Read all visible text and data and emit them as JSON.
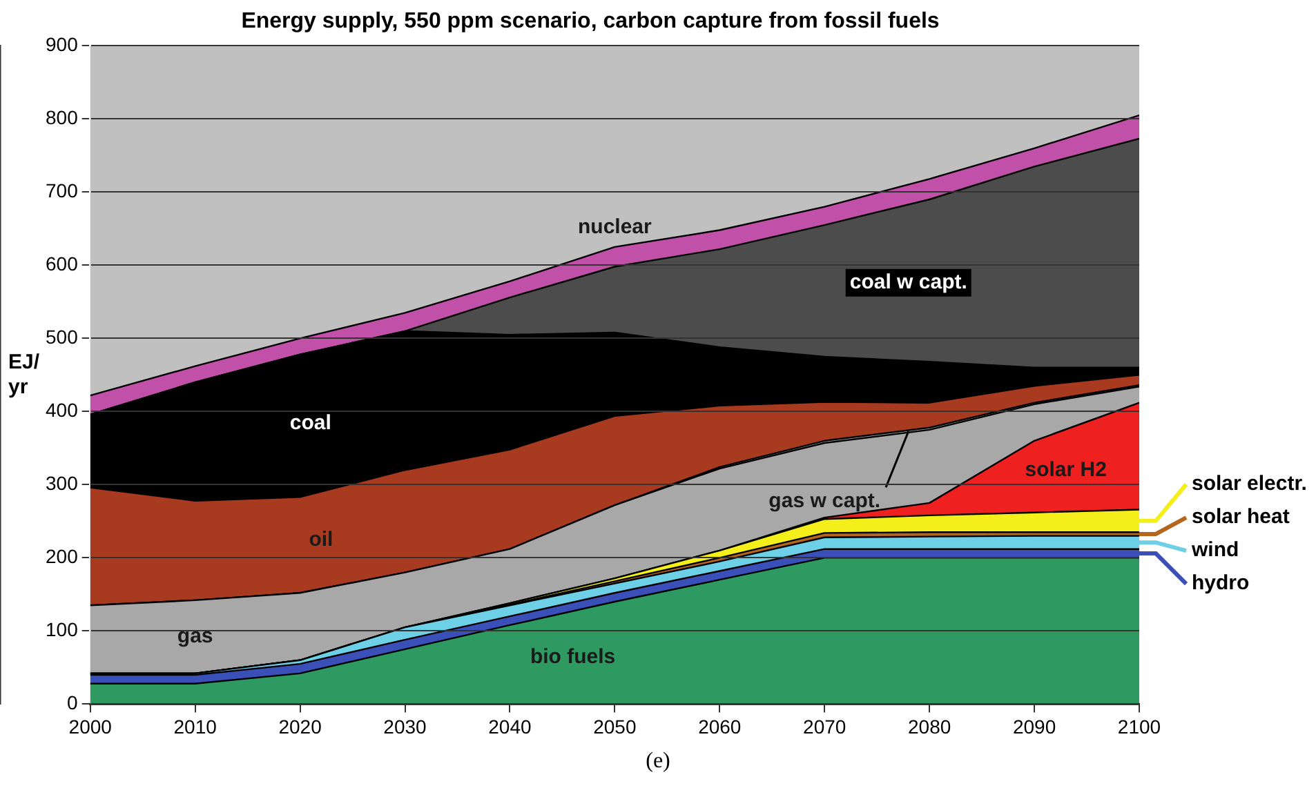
{
  "chart_data": {
    "type": "area",
    "title": "Energy supply, 550 ppm scenario, carbon capture from fossil fuels",
    "ylabel": "EJ/ yr",
    "stacked": true,
    "grid": "y",
    "legend": "right",
    "x": [
      2000,
      2010,
      2020,
      2030,
      2040,
      2050,
      2060,
      2070,
      2080,
      2090,
      2100
    ],
    "xlim": [
      2000,
      2100
    ],
    "xticks": [
      2000,
      2010,
      2020,
      2030,
      2040,
      2050,
      2060,
      2070,
      2080,
      2090,
      2100
    ],
    "ylim": [
      0,
      900
    ],
    "yticks": [
      0,
      100,
      200,
      300,
      400,
      500,
      600,
      700,
      800,
      900
    ],
    "series": [
      {
        "name": "bio fuels",
        "color": "#2e9a62",
        "values": [
          28,
          28,
          42,
          75,
          108,
          140,
          170,
          200,
          200,
          200,
          200
        ]
      },
      {
        "name": "hydro",
        "color": "#3a4fb8",
        "values": [
          12,
          12,
          13,
          13,
          12,
          12,
          12,
          12,
          12,
          12,
          12
        ]
      },
      {
        "name": "wind",
        "color": "#6dd0e6",
        "values": [
          2,
          2,
          5,
          17,
          15,
          13,
          13,
          16,
          17,
          18,
          18
        ]
      },
      {
        "name": "solar heat",
        "color": "#b5651d",
        "values": [
          0,
          0,
          0,
          0,
          1,
          3,
          5,
          6,
          6,
          5,
          5
        ]
      },
      {
        "name": "solar electr.",
        "color": "#f4ee1a",
        "values": [
          0,
          0,
          0,
          0,
          2,
          4,
          10,
          19,
          23,
          27,
          31
        ]
      },
      {
        "name": "solar H2",
        "color": "#ee2020",
        "values": [
          0,
          0,
          0,
          0,
          0,
          0,
          0,
          2,
          17,
          98,
          146
        ]
      },
      {
        "name": "gas",
        "color": "#a8a8a8",
        "values": [
          93,
          100,
          92,
          75,
          74,
          100,
          112,
          102,
          100,
          50,
          22
        ]
      },
      {
        "name": "gas w capt.",
        "color": "#b4b4b4",
        "values": [
          0,
          0,
          0,
          0,
          0,
          0,
          2,
          3,
          3,
          2,
          2
        ]
      },
      {
        "name": "oil",
        "color": "#a83a20",
        "values": [
          161,
          136,
          131,
          140,
          136,
          122,
          84,
          53,
          34,
          23,
          14
        ]
      },
      {
        "name": "coal",
        "color": "#000000",
        "values": [
          100,
          162,
          195,
          190,
          157,
          114,
          80,
          62,
          56,
          25,
          10
        ]
      },
      {
        "name": "coal w capt.",
        "color": "#4c4c4c",
        "values": [
          0,
          0,
          0,
          0,
          51,
          90,
          134,
          180,
          222,
          275,
          313
        ]
      },
      {
        "name": "nuclear",
        "color": "#c050a8",
        "values": [
          26,
          22,
          22,
          25,
          22,
          27,
          26,
          25,
          28,
          25,
          32
        ]
      }
    ],
    "annotations": [
      "(e)"
    ]
  }
}
